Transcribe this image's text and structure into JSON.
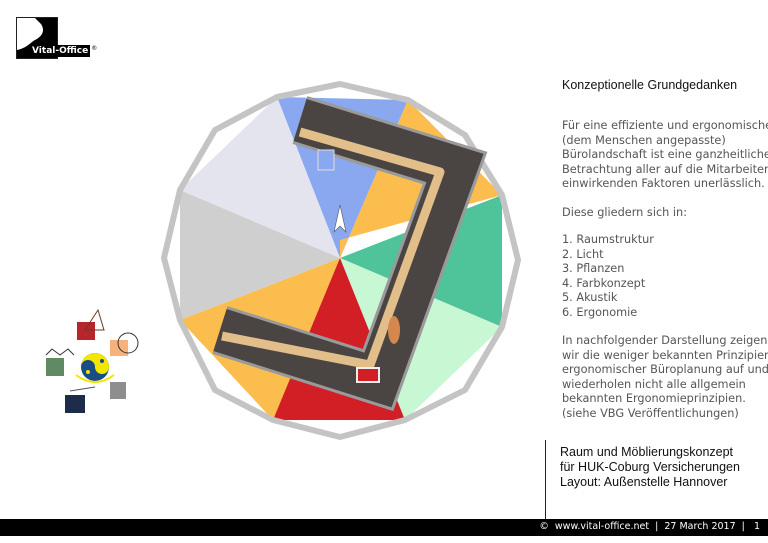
{
  "logo": {
    "text": "Vital-Office",
    "mark": "®"
  },
  "heading": "Konzeptionelle Grundgedanken",
  "intro_lines": [
    "Für eine effiziente und ergonomische",
    "(dem Menschen angepasste)",
    "Bürolandschaft ist eine ganzheitliche",
    "Betrachtung aller auf die Mitarbeiter",
    "einwirkenden Faktoren unerlässlich."
  ],
  "list_intro": "Diese gliedern sich in:",
  "list": [
    "1. Raumstruktur",
    "2. Licht",
    "3. Pflanzen",
    "4. Farbkonzept",
    "5. Akustik",
    "6. Ergonomie"
  ],
  "outro_lines": [
    "In nachfolgender Darstellung zeigen",
    "wir die weniger bekannten Prinzipien",
    "ergonomischer Büroplanung auf und",
    "wiederholen nicht alle allgemein",
    "bekannten Ergonomieprinzipien.",
    "(siehe VBG Veröffentlichungen)"
  ],
  "project_lines": [
    "Raum und Möblierungskonzept",
    "für HUK-Coburg Versicherungen",
    "Layout: Außenstelle Hannover"
  ],
  "footer": {
    "copyright": "©  www.vital-office.net",
    "date": "27 March 2017",
    "page": "1"
  },
  "colors": {
    "blue": "#8aa8f0",
    "orange": "#fbbd4e",
    "green": "#4fc39a",
    "light_green": "#c8f7d4",
    "red": "#d21f26",
    "gray": "#cfcfcf",
    "lavender": "#e4e4ee",
    "floor": "#4a4542",
    "corridor": "#e2bf8a"
  }
}
